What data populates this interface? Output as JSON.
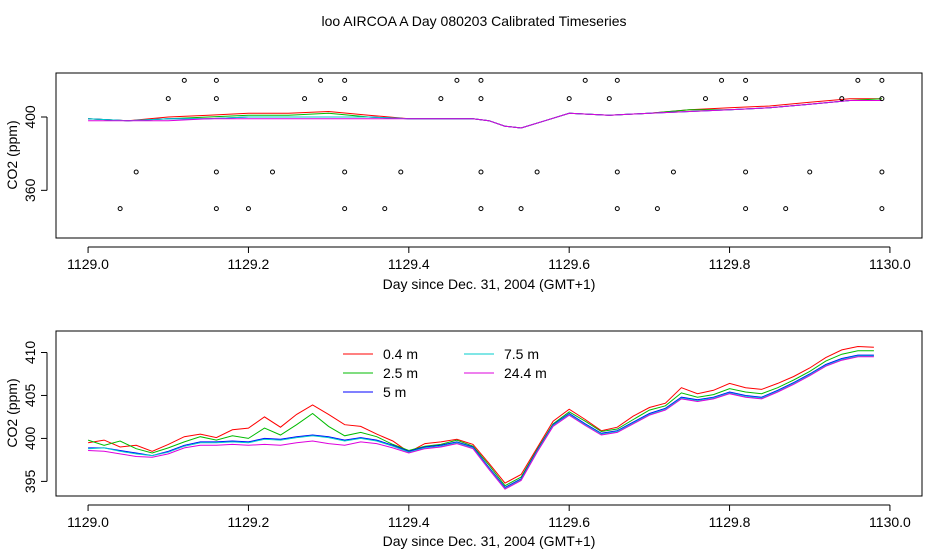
{
  "page": {
    "title": "loo AIRCOA A  Day 080203  Calibrated Timeseries"
  },
  "chart_data": [
    {
      "type": "line",
      "title": "loo AIRCOA A  Day 080203  Calibrated Timeseries",
      "xlabel": "Day since Dec. 31, 2004 (GMT+1)",
      "ylabel": "CO2 (ppm)",
      "xlim": [
        1128.96,
        1130.04
      ],
      "ylim": [
        334,
        424
      ],
      "xticks": [
        "1129.0",
        "1129.2",
        "1129.4",
        "1129.6",
        "1129.8",
        "1130.0"
      ],
      "xtick_values": [
        1129.0,
        1129.2,
        1129.4,
        1129.6,
        1129.8,
        1130.0
      ],
      "yticks": [
        "360",
        "400"
      ],
      "ytick_values": [
        360,
        400
      ],
      "lines": {
        "x": [
          1129.0,
          1129.05,
          1129.1,
          1129.15,
          1129.2,
          1129.25,
          1129.3,
          1129.35,
          1129.4,
          1129.45,
          1129.48,
          1129.5,
          1129.52,
          1129.54,
          1129.57,
          1129.6,
          1129.65,
          1129.7,
          1129.75,
          1129.8,
          1129.85,
          1129.9,
          1129.95,
          1129.99
        ],
        "series": [
          {
            "color": "#ff0000",
            "values": [
              399,
              398,
              400,
              401,
              402,
              402,
              403,
              401,
              399,
              399,
              399,
              398,
              395,
              394,
              398,
              402,
              401,
              402,
              404,
              405,
              406,
              408,
              410,
              410
            ]
          },
          {
            "color": "#00bb00",
            "values": [
              399,
              398,
              399,
              400,
              401,
              401,
              402,
              400,
              399,
              399,
              399,
              398,
              395,
              394,
              398,
              402,
              401,
              402,
              404,
              404,
              405,
              407,
              409,
              410
            ]
          },
          {
            "color": "#0000ff",
            "values": [
              399,
              398,
              399,
              399,
              400,
              400,
              400,
              400,
              399,
              399,
              399,
              398,
              395,
              394,
              398,
              402,
              401,
              402,
              403,
              404,
              405,
              407,
              409,
              409
            ]
          },
          {
            "color": "#00cccc",
            "values": [
              399,
              398,
              399,
              399,
              400,
              400,
              400,
              400,
              399,
              399,
              399,
              398,
              395,
              394,
              398,
              402,
              401,
              402,
              403,
              404,
              405,
              407,
              409,
              409
            ]
          },
          {
            "color": "#dd00dd",
            "values": [
              398,
              398,
              398,
              399,
              399,
              399,
              399,
              399,
              399,
              399,
              399,
              398,
              395,
              394,
              398,
              402,
              401,
              402,
              403,
              404,
              405,
              407,
              409,
              409
            ]
          }
        ]
      },
      "points": [
        {
          "x": 1129.12,
          "y": 420
        },
        {
          "x": 1129.16,
          "y": 420
        },
        {
          "x": 1129.29,
          "y": 420
        },
        {
          "x": 1129.32,
          "y": 420
        },
        {
          "x": 1129.46,
          "y": 420
        },
        {
          "x": 1129.49,
          "y": 420
        },
        {
          "x": 1129.62,
          "y": 420
        },
        {
          "x": 1129.66,
          "y": 420
        },
        {
          "x": 1129.79,
          "y": 420
        },
        {
          "x": 1129.82,
          "y": 420
        },
        {
          "x": 1129.96,
          "y": 420
        },
        {
          "x": 1129.99,
          "y": 420
        },
        {
          "x": 1129.1,
          "y": 410
        },
        {
          "x": 1129.16,
          "y": 410
        },
        {
          "x": 1129.27,
          "y": 410
        },
        {
          "x": 1129.32,
          "y": 410
        },
        {
          "x": 1129.44,
          "y": 410
        },
        {
          "x": 1129.49,
          "y": 410
        },
        {
          "x": 1129.6,
          "y": 410
        },
        {
          "x": 1129.65,
          "y": 410
        },
        {
          "x": 1129.77,
          "y": 410
        },
        {
          "x": 1129.82,
          "y": 410
        },
        {
          "x": 1129.94,
          "y": 410
        },
        {
          "x": 1129.99,
          "y": 410
        },
        {
          "x": 1129.06,
          "y": 370
        },
        {
          "x": 1129.16,
          "y": 370
        },
        {
          "x": 1129.23,
          "y": 370
        },
        {
          "x": 1129.32,
          "y": 370
        },
        {
          "x": 1129.39,
          "y": 370
        },
        {
          "x": 1129.49,
          "y": 370
        },
        {
          "x": 1129.56,
          "y": 370
        },
        {
          "x": 1129.66,
          "y": 370
        },
        {
          "x": 1129.73,
          "y": 370
        },
        {
          "x": 1129.82,
          "y": 370
        },
        {
          "x": 1129.9,
          "y": 370
        },
        {
          "x": 1129.99,
          "y": 370
        },
        {
          "x": 1129.04,
          "y": 350
        },
        {
          "x": 1129.16,
          "y": 350
        },
        {
          "x": 1129.2,
          "y": 350
        },
        {
          "x": 1129.32,
          "y": 350
        },
        {
          "x": 1129.37,
          "y": 350
        },
        {
          "x": 1129.49,
          "y": 350
        },
        {
          "x": 1129.54,
          "y": 350
        },
        {
          "x": 1129.66,
          "y": 350
        },
        {
          "x": 1129.71,
          "y": 350
        },
        {
          "x": 1129.82,
          "y": 350
        },
        {
          "x": 1129.87,
          "y": 350
        },
        {
          "x": 1129.99,
          "y": 350
        }
      ]
    },
    {
      "type": "line",
      "xlabel": "Day since Dec. 31, 2004 (GMT+1)",
      "ylabel": "CO2 (ppm)",
      "xlim": [
        1128.96,
        1130.04
      ],
      "ylim": [
        393.3,
        412.5
      ],
      "xticks": [
        "1129.0",
        "1129.2",
        "1129.4",
        "1129.6",
        "1129.8",
        "1130.0"
      ],
      "xtick_values": [
        1129.0,
        1129.2,
        1129.4,
        1129.6,
        1129.8,
        1130.0
      ],
      "yticks": [
        "395",
        "400",
        "405",
        "410"
      ],
      "ytick_values": [
        395,
        400,
        405,
        410
      ],
      "legend": {
        "placement": "top-center",
        "items": [
          {
            "label": "0.4 m",
            "color": "#ff0000"
          },
          {
            "label": "2.5 m",
            "color": "#00bb00"
          },
          {
            "label": "5 m",
            "color": "#0000ff"
          },
          {
            "label": "7.5 m",
            "color": "#00cccc"
          },
          {
            "label": "24.4 m",
            "color": "#dd00dd"
          }
        ]
      },
      "x": [
        1129.0,
        1129.02,
        1129.04,
        1129.06,
        1129.08,
        1129.1,
        1129.12,
        1129.14,
        1129.16,
        1129.18,
        1129.2,
        1129.22,
        1129.24,
        1129.26,
        1129.28,
        1129.3,
        1129.32,
        1129.34,
        1129.36,
        1129.38,
        1129.4,
        1129.42,
        1129.44,
        1129.46,
        1129.48,
        1129.5,
        1129.52,
        1129.54,
        1129.56,
        1129.58,
        1129.6,
        1129.62,
        1129.64,
        1129.66,
        1129.68,
        1129.7,
        1129.72,
        1129.74,
        1129.76,
        1129.78,
        1129.8,
        1129.82,
        1129.84,
        1129.86,
        1129.88,
        1129.9,
        1129.92,
        1129.94,
        1129.96,
        1129.98
      ],
      "series": [
        {
          "name": "0.4 m",
          "color": "#ff0000",
          "values": [
            399.5,
            399.8,
            399.0,
            399.2,
            398.5,
            399.3,
            400.2,
            400.5,
            400.1,
            401.0,
            401.2,
            402.5,
            401.3,
            402.8,
            403.9,
            402.8,
            401.6,
            401.4,
            400.5,
            399.7,
            398.4,
            399.4,
            399.6,
            399.9,
            399.3,
            397.1,
            394.8,
            395.8,
            398.9,
            402.0,
            403.4,
            402.2,
            400.9,
            401.3,
            402.6,
            403.6,
            404.1,
            405.9,
            405.2,
            405.6,
            406.4,
            405.9,
            405.7,
            406.4,
            407.2,
            408.2,
            409.4,
            410.3,
            410.7,
            410.6
          ]
        },
        {
          "name": "2.5 m",
          "color": "#00bb00",
          "values": [
            399.8,
            399.2,
            399.7,
            398.8,
            398.3,
            398.9,
            399.6,
            400.2,
            399.8,
            400.3,
            400.0,
            401.2,
            400.4,
            401.6,
            402.9,
            401.4,
            400.3,
            400.7,
            400.2,
            399.3,
            398.6,
            399.1,
            399.3,
            399.8,
            399.1,
            396.9,
            394.5,
            395.5,
            398.7,
            401.7,
            403.1,
            402.0,
            400.8,
            401.1,
            402.2,
            403.3,
            403.8,
            405.3,
            404.8,
            405.1,
            405.8,
            405.4,
            405.2,
            405.9,
            406.8,
            407.8,
            409.0,
            409.8,
            410.2,
            410.2
          ]
        },
        {
          "name": "5 m",
          "color": "#0000ff",
          "values": [
            398.9,
            398.9,
            398.6,
            398.3,
            398.0,
            398.5,
            399.2,
            399.6,
            399.6,
            399.7,
            399.6,
            400.0,
            399.9,
            400.2,
            400.4,
            400.2,
            399.8,
            400.1,
            399.8,
            399.2,
            398.5,
            399.0,
            399.2,
            399.6,
            399.0,
            396.6,
            394.3,
            395.3,
            398.6,
            401.6,
            402.9,
            401.7,
            400.6,
            400.9,
            401.9,
            402.9,
            403.5,
            404.8,
            404.5,
            404.8,
            405.4,
            405.0,
            404.8,
            405.6,
            406.5,
            407.5,
            408.6,
            409.3,
            409.7,
            409.7
          ]
        },
        {
          "name": "7.5 m",
          "color": "#00cccc",
          "values": [
            398.8,
            398.9,
            398.5,
            398.2,
            398.0,
            398.4,
            399.1,
            399.5,
            399.5,
            399.6,
            399.5,
            399.9,
            399.8,
            400.1,
            400.3,
            400.1,
            399.7,
            400.0,
            399.7,
            399.1,
            398.4,
            398.9,
            399.1,
            399.5,
            398.9,
            396.5,
            394.2,
            395.2,
            398.5,
            401.5,
            402.8,
            401.6,
            400.5,
            400.8,
            401.8,
            402.8,
            403.4,
            404.7,
            404.4,
            404.7,
            405.3,
            404.9,
            404.7,
            405.5,
            406.4,
            407.4,
            408.5,
            409.2,
            409.6,
            409.6
          ]
        },
        {
          "name": "24.4 m",
          "color": "#dd00dd",
          "values": [
            398.6,
            398.5,
            398.2,
            397.9,
            397.8,
            398.2,
            398.9,
            399.2,
            399.2,
            399.3,
            399.2,
            399.3,
            399.2,
            399.5,
            399.7,
            399.4,
            399.2,
            399.6,
            399.4,
            398.9,
            398.3,
            398.8,
            399.0,
            399.4,
            398.8,
            396.4,
            394.1,
            395.1,
            398.4,
            401.4,
            402.7,
            401.5,
            400.4,
            400.7,
            401.7,
            402.7,
            403.3,
            404.6,
            404.3,
            404.6,
            405.2,
            404.8,
            404.6,
            405.4,
            406.3,
            407.3,
            408.4,
            409.1,
            409.5,
            409.5
          ]
        }
      ]
    }
  ]
}
